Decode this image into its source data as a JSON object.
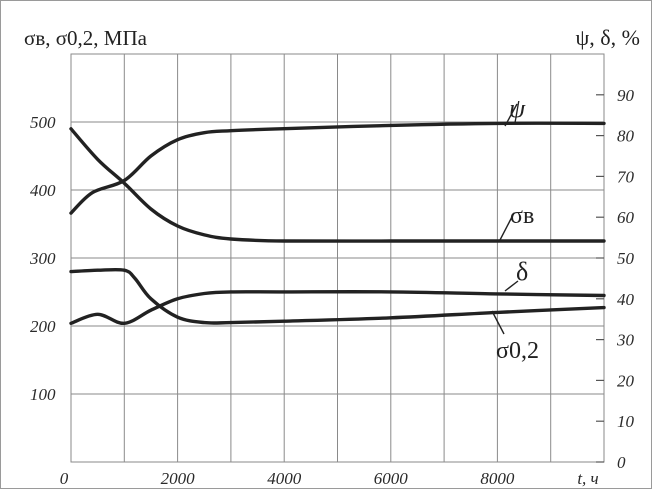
{
  "chart_data": {
    "type": "line",
    "y_left_label": "σв, σ0,2, МПа",
    "y_right_label": "ψ, δ, %",
    "x_label": "t, ч",
    "origin_label": "0",
    "x_range": [
      0,
      10000
    ],
    "y_left_range": [
      0,
      600
    ],
    "y_right_range": [
      0,
      100
    ],
    "grid": true,
    "x_ticks": [
      {
        "value": 2000,
        "label": "2000"
      },
      {
        "value": 4000,
        "label": "4000"
      },
      {
        "value": 6000,
        "label": "6000"
      },
      {
        "value": 8000,
        "label": "8000"
      }
    ],
    "y_left_ticks": [
      {
        "value": 100,
        "label": "100"
      },
      {
        "value": 200,
        "label": "200"
      },
      {
        "value": 300,
        "label": "300"
      },
      {
        "value": 400,
        "label": "400"
      },
      {
        "value": 500,
        "label": "500"
      }
    ],
    "y_right_ticks": [
      {
        "value": 0,
        "label": "0"
      },
      {
        "value": 10,
        "label": "10"
      },
      {
        "value": 20,
        "label": "20"
      },
      {
        "value": 30,
        "label": "30"
      },
      {
        "value": 40,
        "label": "40"
      },
      {
        "value": 50,
        "label": "50"
      },
      {
        "value": 60,
        "label": "60"
      },
      {
        "value": 70,
        "label": "70"
      },
      {
        "value": 80,
        "label": "80"
      },
      {
        "value": 90,
        "label": "90"
      }
    ],
    "series": [
      {
        "name": "ψ",
        "axis": "right",
        "x": [
          0,
          400,
          1000,
          1500,
          2000,
          2500,
          3000,
          4000,
          6000,
          8000,
          10000
        ],
        "y": [
          61,
          66,
          69,
          75,
          79,
          80.7,
          81.2,
          81.7,
          82.5,
          83,
          83
        ]
      },
      {
        "name": "σв",
        "axis": "left",
        "x": [
          0,
          500,
          1000,
          1500,
          2000,
          2500,
          3000,
          4000,
          6000,
          8000,
          10000
        ],
        "y": [
          490,
          445,
          410,
          372,
          347,
          334,
          328,
          325,
          325,
          325,
          325
        ]
      },
      {
        "name": "δ",
        "axis": "right",
        "x": [
          0,
          500,
          1000,
          1500,
          2000,
          2500,
          3000,
          4000,
          6000,
          8000,
          10000
        ],
        "y": [
          34,
          36.2,
          34,
          37.2,
          40,
          41.3,
          41.7,
          41.7,
          41.7,
          41.2,
          40.8
        ]
      },
      {
        "name": "σ0,2",
        "axis": "left",
        "x": [
          0,
          500,
          1000,
          1200,
          1500,
          2000,
          2500,
          3000,
          4000,
          6000,
          8000,
          10000
        ],
        "y": [
          280,
          282,
          282,
          270,
          240,
          213,
          205,
          205,
          207,
          212,
          220,
          227
        ]
      }
    ]
  }
}
